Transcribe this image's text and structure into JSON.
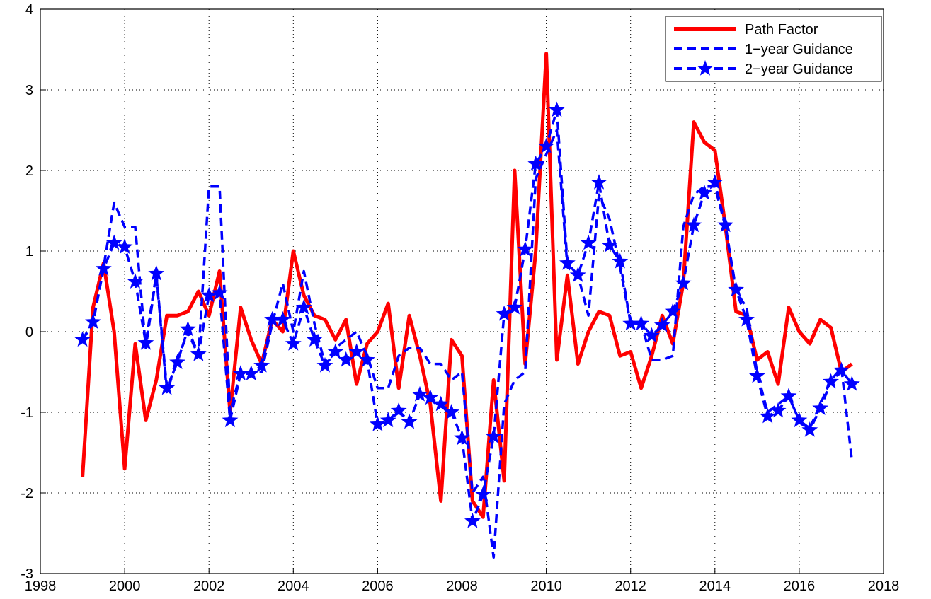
{
  "chart_data": {
    "type": "line",
    "x": [
      1999,
      1999.25,
      1999.5,
      1999.75,
      2000,
      2000.25,
      2000.5,
      2000.75,
      2001,
      2001.25,
      2001.5,
      2001.75,
      2002,
      2002.25,
      2002.5,
      2002.75,
      2003,
      2003.25,
      2003.5,
      2003.75,
      2004,
      2004.25,
      2004.5,
      2004.75,
      2005,
      2005.25,
      2005.5,
      2005.75,
      2006,
      2006.25,
      2006.5,
      2006.75,
      2007,
      2007.25,
      2007.5,
      2007.75,
      2008,
      2008.25,
      2008.5,
      2008.75,
      2009,
      2009.25,
      2009.5,
      2009.75,
      2010,
      2010.25,
      2010.5,
      2010.75,
      2011,
      2011.25,
      2011.5,
      2011.75,
      2012,
      2012.25,
      2012.5,
      2012.75,
      2013,
      2013.25,
      2013.5,
      2013.75,
      2014,
      2014.25,
      2014.5,
      2014.75,
      2015,
      2015.25,
      2015.5,
      2015.75,
      2016,
      2016.25,
      2016.5,
      2016.75,
      2017,
      2017.25
    ],
    "series": [
      {
        "name": "Path Factor",
        "color": "#ff0000",
        "style": "solid",
        "values": [
          -1.8,
          0.3,
          0.85,
          0.0,
          -1.7,
          -0.15,
          -1.1,
          -0.6,
          0.2,
          0.2,
          0.25,
          0.5,
          0.2,
          0.75,
          -1.0,
          0.3,
          -0.1,
          -0.4,
          0.15,
          0.0,
          1.0,
          0.45,
          0.2,
          0.15,
          -0.1,
          0.15,
          -0.65,
          -0.15,
          0.0,
          0.35,
          -0.7,
          0.2,
          -0.3,
          -0.9,
          -2.1,
          -0.1,
          -0.3,
          -2.1,
          -2.3,
          -0.6,
          -1.85,
          2.0,
          -0.4,
          1.0,
          3.45,
          -0.35,
          0.7,
          -0.4,
          0.0,
          0.25,
          0.2,
          -0.3,
          -0.25,
          -0.7,
          -0.3,
          0.2,
          -0.15,
          0.6,
          2.6,
          2.35,
          2.25,
          1.3,
          0.25,
          0.2,
          -0.35,
          -0.25,
          -0.65,
          0.3,
          0.0,
          -0.15,
          0.15,
          0.05,
          -0.5,
          -0.4
        ]
      },
      {
        "name": "1−year Guidance",
        "color": "#0000ff",
        "style": "dashed",
        "values": [
          -0.1,
          0.1,
          0.8,
          1.6,
          1.3,
          1.3,
          -0.2,
          0.7,
          -0.75,
          -0.35,
          0.0,
          -0.3,
          1.8,
          1.8,
          -1.0,
          -0.5,
          -0.5,
          -0.5,
          0.1,
          0.6,
          0.0,
          0.75,
          0.1,
          -0.4,
          -0.2,
          -0.1,
          0.0,
          -0.3,
          -0.7,
          -0.7,
          -0.3,
          -0.2,
          -0.2,
          -0.4,
          -0.4,
          -0.6,
          -0.5,
          -2.0,
          -1.8,
          -2.8,
          -0.9,
          -0.6,
          -0.5,
          1.9,
          2.2,
          2.5,
          0.8,
          0.7,
          0.2,
          1.7,
          1.4,
          0.8,
          0.1,
          0.1,
          -0.35,
          -0.35,
          -0.3,
          1.3,
          1.7,
          1.8,
          1.8,
          1.3,
          0.5,
          0.3,
          -0.5,
          -1.0,
          -0.9,
          -0.8,
          -1.1,
          -1.2,
          -0.9,
          -0.6,
          -0.45,
          -1.6
        ]
      },
      {
        "name": "2−year Guidance",
        "color": "#0000ff",
        "style": "dashed-star",
        "values": [
          -0.1,
          0.12,
          0.78,
          1.1,
          1.05,
          0.62,
          -0.14,
          0.72,
          -0.7,
          -0.38,
          0.03,
          -0.28,
          0.45,
          0.48,
          -1.1,
          -0.52,
          -0.52,
          -0.42,
          0.15,
          0.15,
          -0.15,
          0.3,
          -0.1,
          -0.42,
          -0.25,
          -0.35,
          -0.25,
          -0.35,
          -1.15,
          -1.1,
          -0.98,
          -1.12,
          -0.78,
          -0.82,
          -0.9,
          -1.0,
          -1.32,
          -2.35,
          -2.02,
          -1.3,
          0.22,
          0.3,
          1.02,
          2.08,
          2.3,
          2.75,
          0.85,
          0.7,
          1.1,
          1.85,
          1.07,
          0.87,
          0.1,
          0.1,
          -0.05,
          0.08,
          0.25,
          0.6,
          1.32,
          1.72,
          1.85,
          1.32,
          0.52,
          0.15,
          -0.55,
          -1.05,
          -0.98,
          -0.8,
          -1.1,
          -1.22,
          -0.95,
          -0.62,
          -0.48,
          -0.65
        ]
      }
    ],
    "xlim": [
      1998,
      2018
    ],
    "xticks": [
      1998,
      2000,
      2002,
      2004,
      2006,
      2008,
      2010,
      2012,
      2014,
      2016,
      2018
    ],
    "ylim": [
      -3,
      4
    ],
    "yticks": [
      -3,
      -2,
      -1,
      0,
      1,
      2,
      3,
      4
    ],
    "grid": true,
    "legend": "top-right"
  }
}
